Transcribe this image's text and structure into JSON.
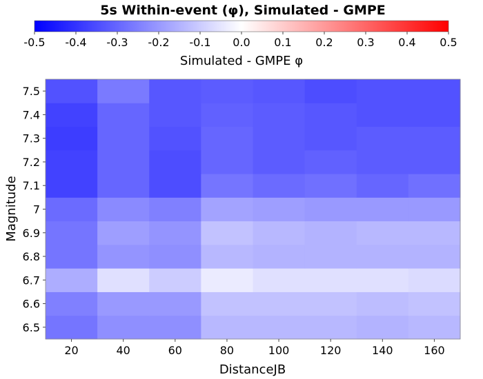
{
  "chart_data": {
    "type": "heatmap",
    "title": "5s Within-event (φ), Simulated - GMPE",
    "xlabel": "DistanceJB",
    "ylabel": "Magnitude",
    "x_ticks": [
      20,
      40,
      60,
      80,
      100,
      120,
      140,
      160
    ],
    "y_ticks": [
      "6.5",
      "6.6",
      "6.7",
      "6.8",
      "6.9",
      "7",
      "7.1",
      "7.2",
      "7.3",
      "7.4",
      "7.5"
    ],
    "x_bins": [
      20,
      40,
      60,
      80,
      100,
      120,
      140,
      160
    ],
    "y_bins": [
      6.5,
      6.6,
      6.7,
      6.8,
      6.9,
      7.0,
      7.1,
      7.2,
      7.3,
      7.4,
      7.5
    ],
    "xlim": [
      10,
      170
    ],
    "ylim": [
      6.45,
      7.55
    ],
    "values": [
      [
        -0.27,
        -0.22,
        -0.22,
        -0.14,
        -0.14,
        -0.14,
        -0.15,
        -0.14
      ],
      [
        -0.25,
        -0.2,
        -0.2,
        -0.12,
        -0.12,
        -0.12,
        -0.13,
        -0.12
      ],
      [
        -0.16,
        -0.06,
        -0.1,
        -0.04,
        -0.06,
        -0.06,
        -0.06,
        -0.07
      ],
      [
        -0.27,
        -0.21,
        -0.22,
        -0.14,
        -0.15,
        -0.15,
        -0.15,
        -0.15
      ],
      [
        -0.27,
        -0.19,
        -0.21,
        -0.12,
        -0.14,
        -0.15,
        -0.14,
        -0.14
      ],
      [
        -0.29,
        -0.23,
        -0.25,
        -0.18,
        -0.19,
        -0.2,
        -0.2,
        -0.2
      ],
      [
        -0.37,
        -0.3,
        -0.35,
        -0.27,
        -0.29,
        -0.28,
        -0.3,
        -0.28
      ],
      [
        -0.37,
        -0.3,
        -0.35,
        -0.3,
        -0.32,
        -0.31,
        -0.32,
        -0.32
      ],
      [
        -0.38,
        -0.3,
        -0.34,
        -0.3,
        -0.32,
        -0.33,
        -0.32,
        -0.32
      ],
      [
        -0.37,
        -0.3,
        -0.33,
        -0.31,
        -0.32,
        -0.33,
        -0.34,
        -0.34
      ],
      [
        -0.34,
        -0.26,
        -0.33,
        -0.32,
        -0.33,
        -0.35,
        -0.34,
        -0.34
      ]
    ],
    "colorbar": {
      "min": -0.5,
      "max": 0.5,
      "ticks": [
        "-0.5",
        "-0.4",
        "-0.3",
        "-0.2",
        "-0.1",
        "0.0",
        "0.1",
        "0.2",
        "0.3",
        "0.4",
        "0.5"
      ],
      "label": "Simulated - GMPE φ",
      "colors": {
        "low": "#0000ff",
        "mid": "#ffffff",
        "high": "#ff0000"
      }
    },
    "grid": false,
    "legend": "top"
  }
}
